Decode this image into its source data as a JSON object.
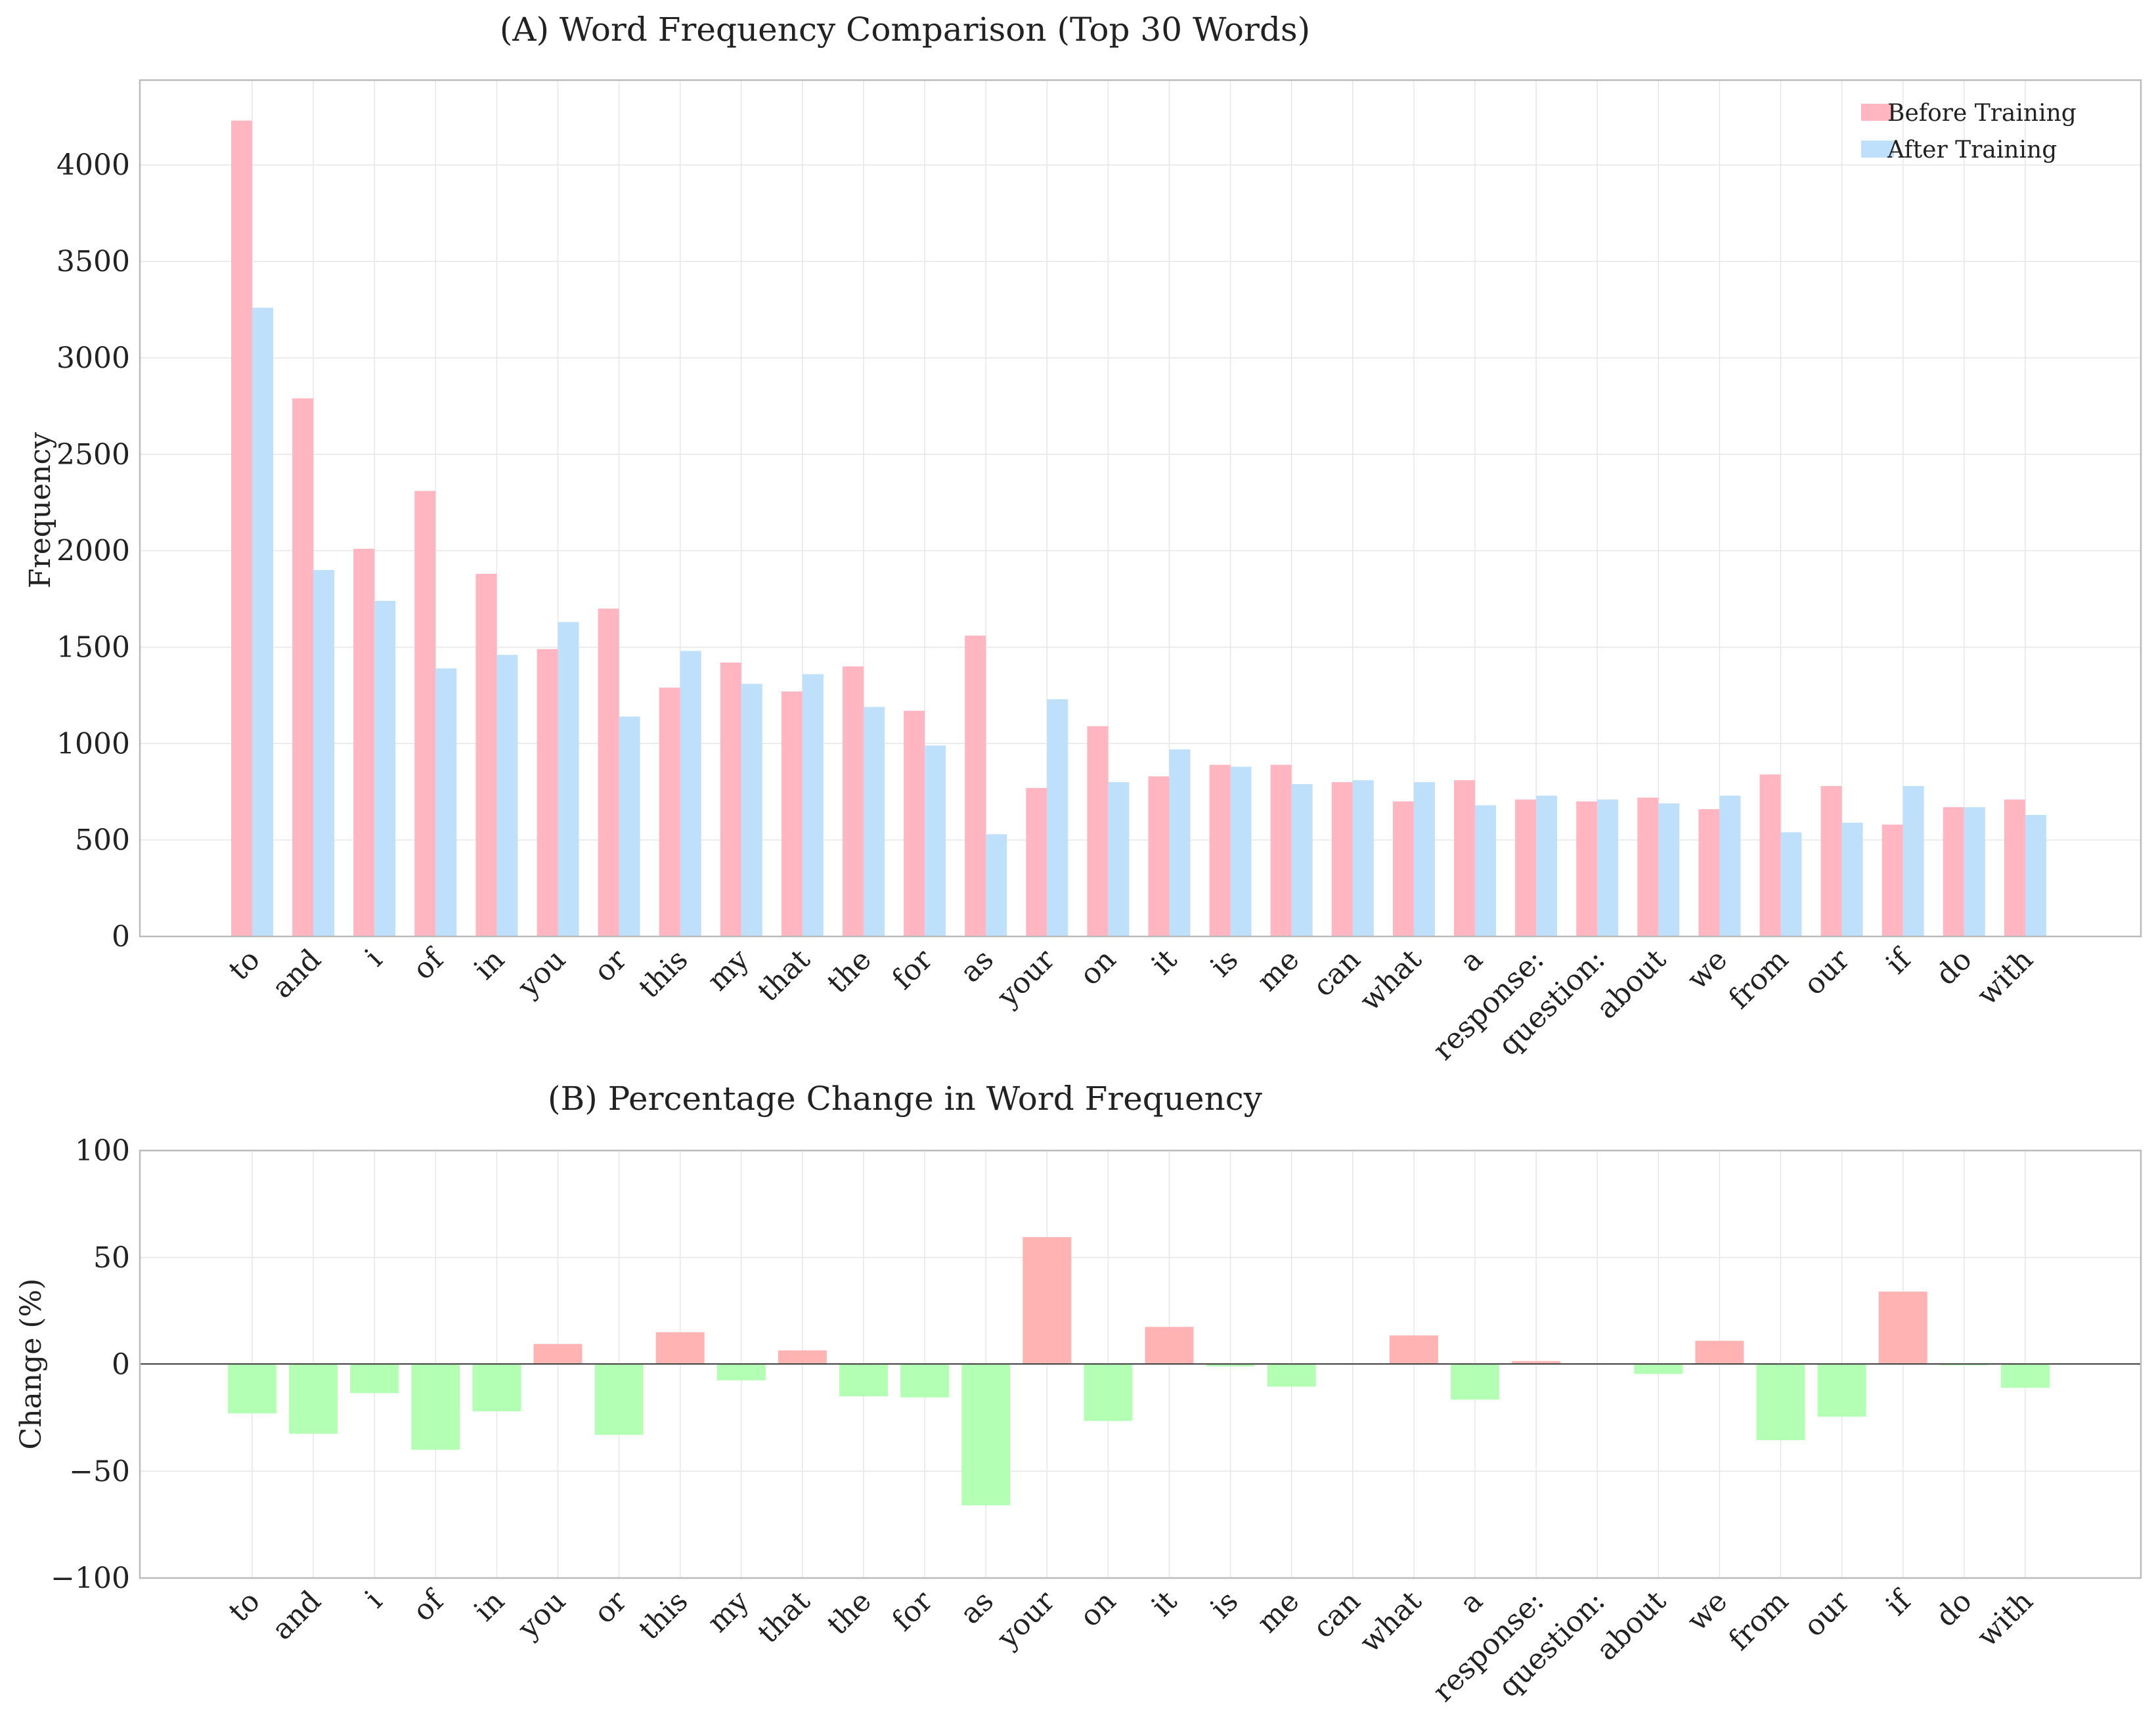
{
  "chart_data": [
    {
      "type": "bar",
      "title": "(A) Word Frequency Comparison (Top 30 Words)",
      "xlabel": "",
      "ylabel": "Frequency",
      "ylim": [
        0,
        4440
      ],
      "yticks": [
        0,
        500,
        1000,
        1500,
        2000,
        2500,
        3000,
        3500,
        4000
      ],
      "grid": true,
      "legend_position": "top-right",
      "categories": [
        "to",
        "and",
        "i",
        "of",
        "in",
        "you",
        "or",
        "this",
        "my",
        "that",
        "the",
        "for",
        "as",
        "your",
        "on",
        "it",
        "is",
        "me",
        "can",
        "what",
        "a",
        "response:",
        "question:",
        "about",
        "we",
        "from",
        "our",
        "if",
        "do",
        "with"
      ],
      "series": [
        {
          "name": "Before Training",
          "color": "#ffb6c1",
          "values": [
            4230,
            2790,
            2010,
            2310,
            1880,
            1490,
            1700,
            1290,
            1420,
            1270,
            1400,
            1170,
            1560,
            770,
            1090,
            830,
            890,
            890,
            800,
            700,
            810,
            710,
            700,
            720,
            660,
            840,
            780,
            580,
            670,
            710
          ]
        },
        {
          "name": "After Training",
          "color": "#bfe0fb",
          "values": [
            3260,
            1900,
            1740,
            1390,
            1460,
            1630,
            1140,
            1480,
            1310,
            1360,
            1190,
            990,
            530,
            1230,
            800,
            970,
            880,
            790,
            810,
            800,
            680,
            730,
            710,
            690,
            730,
            540,
            590,
            780,
            670,
            630
          ]
        }
      ]
    },
    {
      "type": "bar",
      "title": "(B) Percentage Change in Word Frequency",
      "xlabel": "",
      "ylabel": "Change (%)",
      "ylim": [
        -100,
        100
      ],
      "yticks": [
        -100,
        -50,
        0,
        50,
        100
      ],
      "grid": true,
      "categories": [
        "to",
        "and",
        "i",
        "of",
        "in",
        "you",
        "or",
        "this",
        "my",
        "that",
        "the",
        "for",
        "as",
        "your",
        "on",
        "it",
        "is",
        "me",
        "can",
        "what",
        "a",
        "response:",
        "question:",
        "about",
        "we",
        "from",
        "our",
        "if",
        "do",
        "with"
      ],
      "positive_color": "#ffb3b3",
      "negative_color": "#b3ffb3",
      "values": [
        -23,
        -32.5,
        -13.5,
        -40,
        -22,
        9.5,
        -33,
        15,
        -7.5,
        6.5,
        -15,
        -15.5,
        -66,
        59.5,
        -26.5,
        17.5,
        -1,
        -10.5,
        0.5,
        13.5,
        -16.5,
        1.5,
        0.5,
        -4.5,
        11,
        -35.5,
        -24.5,
        34,
        -0.5,
        -11
      ]
    }
  ]
}
